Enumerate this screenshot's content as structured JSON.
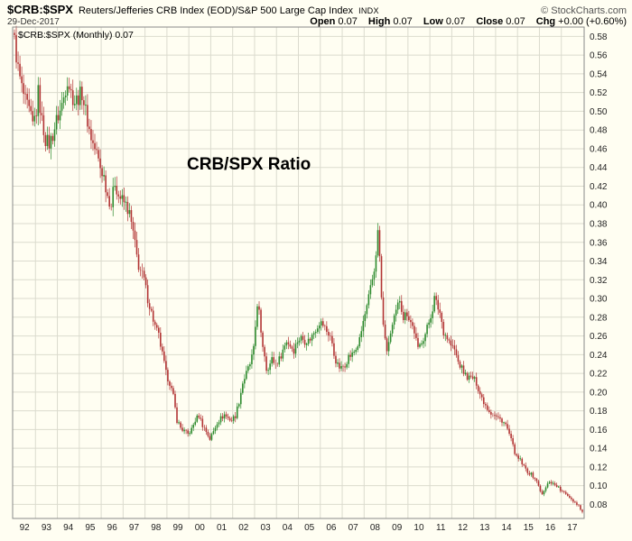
{
  "header": {
    "symbol": "$CRB:$SPX",
    "description": "Reuters/Jefferies CRB Index (EOD)/S&P 500 Large Cap Index",
    "exchange": "INDX",
    "copyright": "© StockCharts.com",
    "date": "29-Dec-2017",
    "quote": {
      "open_label": "Open",
      "open": "0.07",
      "high_label": "High",
      "high": "0.07",
      "low_label": "Low",
      "low": "0.07",
      "close_label": "Close",
      "close": "0.07",
      "chg_label": "Chg",
      "chg": "+0.00 (+0.60%)"
    }
  },
  "chart_data": {
    "type": "candlestick",
    "title": "CRB/SPX Ratio",
    "legend": "$CRB:$SPX (Monthly) 0.07",
    "timeframe": "Monthly",
    "x_labels": [
      "92",
      "93",
      "94",
      "95",
      "96",
      "97",
      "98",
      "99",
      "00",
      "01",
      "02",
      "03",
      "04",
      "05",
      "06",
      "07",
      "08",
      "09",
      "10",
      "11",
      "12",
      "13",
      "14",
      "15",
      "16",
      "17"
    ],
    "y_ticks": [
      0.58,
      0.56,
      0.54,
      0.52,
      0.5,
      0.48,
      0.46,
      0.44,
      0.42,
      0.4,
      0.38,
      0.36,
      0.34,
      0.32,
      0.3,
      0.28,
      0.26,
      0.24,
      0.22,
      0.2,
      0.18,
      0.16,
      0.14,
      0.12,
      0.1,
      0.08
    ],
    "ylim": [
      0.065,
      0.59
    ],
    "months": 312,
    "grid": true,
    "legend_position": "top-left",
    "colors": {
      "up": "#2E8B2E",
      "down": "#B23434",
      "grid": "#DBDBCE",
      "border": "#8A8A8A",
      "bg": "#FFFEF2",
      "text": "#222222"
    },
    "anchors": [
      [
        0,
        0.575
      ],
      [
        1,
        0.56
      ],
      [
        2,
        0.545
      ],
      [
        4,
        0.525
      ],
      [
        6,
        0.51
      ],
      [
        8,
        0.5
      ],
      [
        10,
        0.485
      ],
      [
        12,
        0.5
      ],
      [
        13,
        0.52
      ],
      [
        15,
        0.49
      ],
      [
        17,
        0.47
      ],
      [
        19,
        0.465
      ],
      [
        21,
        0.475
      ],
      [
        23,
        0.49
      ],
      [
        25,
        0.5
      ],
      [
        27,
        0.515
      ],
      [
        29,
        0.535
      ],
      [
        31,
        0.52
      ],
      [
        33,
        0.51
      ],
      [
        35,
        0.515
      ],
      [
        37,
        0.52
      ],
      [
        39,
        0.5
      ],
      [
        41,
        0.48
      ],
      [
        43,
        0.465
      ],
      [
        45,
        0.455
      ],
      [
        47,
        0.44
      ],
      [
        49,
        0.43
      ],
      [
        51,
        0.41
      ],
      [
        53,
        0.4
      ],
      [
        55,
        0.425
      ],
      [
        57,
        0.41
      ],
      [
        59,
        0.405
      ],
      [
        61,
        0.4
      ],
      [
        63,
        0.39
      ],
      [
        65,
        0.37
      ],
      [
        67,
        0.345
      ],
      [
        68,
        0.335
      ],
      [
        70,
        0.325
      ],
      [
        71,
        0.32
      ],
      [
        73,
        0.3
      ],
      [
        75,
        0.285
      ],
      [
        77,
        0.27
      ],
      [
        79,
        0.26
      ],
      [
        81,
        0.24
      ],
      [
        83,
        0.22
      ],
      [
        85,
        0.21
      ],
      [
        87,
        0.195
      ],
      [
        89,
        0.17
      ],
      [
        91,
        0.162
      ],
      [
        93,
        0.158
      ],
      [
        95,
        0.155
      ],
      [
        97,
        0.16
      ],
      [
        99,
        0.17
      ],
      [
        101,
        0.175
      ],
      [
        103,
        0.165
      ],
      [
        105,
        0.158
      ],
      [
        107,
        0.15
      ],
      [
        109,
        0.158
      ],
      [
        111,
        0.168
      ],
      [
        113,
        0.172
      ],
      [
        115,
        0.176
      ],
      [
        117,
        0.172
      ],
      [
        119,
        0.17
      ],
      [
        121,
        0.175
      ],
      [
        123,
        0.19
      ],
      [
        125,
        0.21
      ],
      [
        127,
        0.22
      ],
      [
        129,
        0.23
      ],
      [
        131,
        0.245
      ],
      [
        133,
        0.295
      ],
      [
        134,
        0.285
      ],
      [
        135,
        0.26
      ],
      [
        137,
        0.24
      ],
      [
        138,
        0.225
      ],
      [
        140,
        0.23
      ],
      [
        141,
        0.235
      ],
      [
        143,
        0.23
      ],
      [
        145,
        0.235
      ],
      [
        147,
        0.245
      ],
      [
        149,
        0.255
      ],
      [
        151,
        0.25
      ],
      [
        153,
        0.245
      ],
      [
        155,
        0.255
      ],
      [
        157,
        0.258
      ],
      [
        159,
        0.255
      ],
      [
        161,
        0.255
      ],
      [
        163,
        0.26
      ],
      [
        165,
        0.268
      ],
      [
        167,
        0.275
      ],
      [
        169,
        0.272
      ],
      [
        171,
        0.265
      ],
      [
        173,
        0.26
      ],
      [
        175,
        0.24
      ],
      [
        177,
        0.228
      ],
      [
        179,
        0.225
      ],
      [
        181,
        0.23
      ],
      [
        183,
        0.238
      ],
      [
        185,
        0.24
      ],
      [
        187,
        0.246
      ],
      [
        189,
        0.255
      ],
      [
        191,
        0.275
      ],
      [
        193,
        0.29
      ],
      [
        195,
        0.31
      ],
      [
        197,
        0.33
      ],
      [
        199,
        0.37
      ],
      [
        200,
        0.345
      ],
      [
        201,
        0.3
      ],
      [
        202,
        0.27
      ],
      [
        203,
        0.26
      ],
      [
        204,
        0.24
      ],
      [
        205,
        0.255
      ],
      [
        207,
        0.27
      ],
      [
        209,
        0.285
      ],
      [
        211,
        0.3
      ],
      [
        213,
        0.28
      ],
      [
        215,
        0.285
      ],
      [
        217,
        0.275
      ],
      [
        219,
        0.265
      ],
      [
        221,
        0.245
      ],
      [
        223,
        0.255
      ],
      [
        225,
        0.262
      ],
      [
        227,
        0.275
      ],
      [
        229,
        0.29
      ],
      [
        230,
        0.3
      ],
      [
        231,
        0.295
      ],
      [
        233,
        0.285
      ],
      [
        235,
        0.265
      ],
      [
        237,
        0.258
      ],
      [
        239,
        0.25
      ],
      [
        241,
        0.245
      ],
      [
        243,
        0.232
      ],
      [
        245,
        0.225
      ],
      [
        247,
        0.218
      ],
      [
        249,
        0.215
      ],
      [
        251,
        0.215
      ],
      [
        253,
        0.21
      ],
      [
        255,
        0.198
      ],
      [
        257,
        0.19
      ],
      [
        259,
        0.183
      ],
      [
        261,
        0.178
      ],
      [
        263,
        0.175
      ],
      [
        265,
        0.172
      ],
      [
        267,
        0.17
      ],
      [
        269,
        0.165
      ],
      [
        271,
        0.155
      ],
      [
        273,
        0.142
      ],
      [
        275,
        0.13
      ],
      [
        277,
        0.127
      ],
      [
        279,
        0.12
      ],
      [
        281,
        0.115
      ],
      [
        283,
        0.112
      ],
      [
        285,
        0.108
      ],
      [
        287,
        0.1
      ],
      [
        289,
        0.09
      ],
      [
        291,
        0.098
      ],
      [
        293,
        0.105
      ],
      [
        295,
        0.102
      ],
      [
        297,
        0.1
      ],
      [
        299,
        0.095
      ],
      [
        301,
        0.092
      ],
      [
        303,
        0.09
      ],
      [
        305,
        0.086
      ],
      [
        307,
        0.082
      ],
      [
        309,
        0.079
      ],
      [
        311,
        0.072
      ]
    ]
  }
}
